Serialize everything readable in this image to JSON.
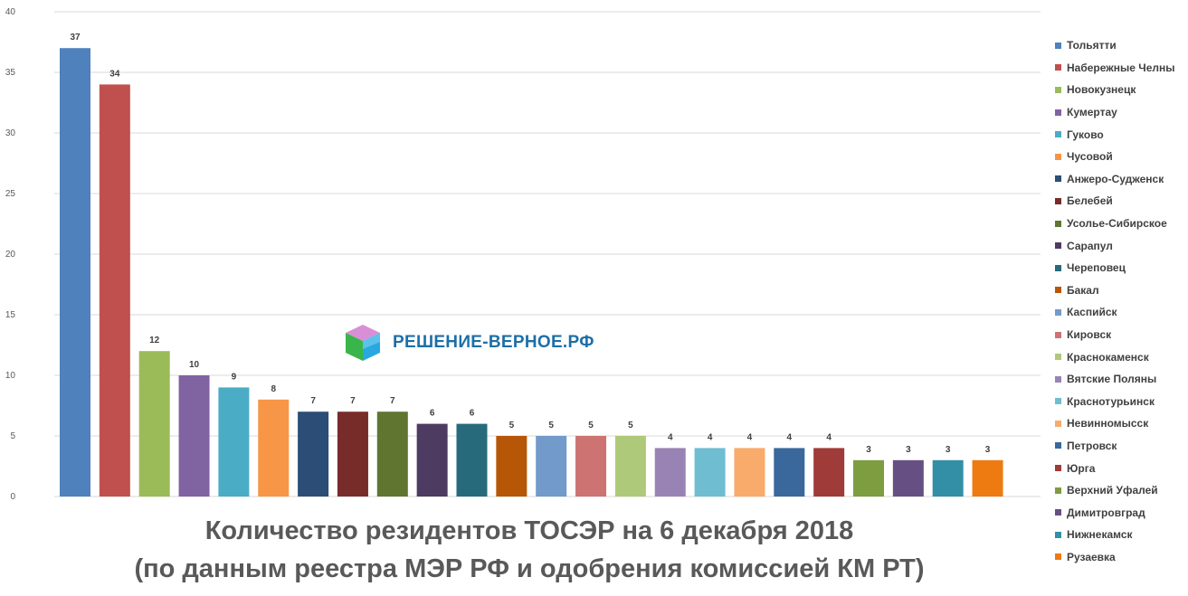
{
  "chart_data": {
    "type": "bar",
    "title": "Количество резидентов ТОСЭР на 6 декабря 2018",
    "subtitle": "(по данным реестра МЭР РФ и одобрения комиссией КМ РТ)",
    "categories": [
      "Тольятти",
      "Набережные Челны",
      "Новокузнецк",
      "Кумертау",
      "Гуково",
      "Чусовой",
      "Анжеро-Судженск",
      "Белебей",
      "Усолье-Сибирское",
      "Сарапул",
      "Череповец",
      "Бакал",
      "Каспийск",
      "Кировск",
      "Краснокаменск",
      "Вятские Поляны",
      "Краснотурьинск",
      "Невинномысск",
      "Петровск",
      "Юрга",
      "Верхний Уфалей",
      "Димитровград",
      "Нижнекамск",
      "Рузаевка"
    ],
    "values": [
      37,
      34,
      12,
      10,
      9,
      8,
      7,
      7,
      7,
      6,
      6,
      5,
      5,
      5,
      5,
      4,
      4,
      4,
      4,
      4,
      3,
      3,
      3,
      3
    ],
    "colors": [
      "#4f81bd",
      "#c0504d",
      "#9bbb59",
      "#8064a2",
      "#4bacc6",
      "#f79646",
      "#2c4d75",
      "#772c2a",
      "#5f7530",
      "#4d3b62",
      "#276a7c",
      "#b65708",
      "#729aca",
      "#cd7371",
      "#afc97a",
      "#9983b5",
      "#6fbdd1",
      "#f9ab6b",
      "#3a679c",
      "#9f3b38",
      "#7e9c40",
      "#664f83",
      "#338fa6",
      "#ee7a12"
    ],
    "ylim": [
      0,
      40
    ],
    "yticks": [
      0,
      5,
      10,
      15,
      20,
      25,
      30,
      35,
      40
    ],
    "grid": true,
    "legend_position": "right"
  },
  "watermark": {
    "text": "РЕШЕНИЕ-ВЕРНОЕ.РФ",
    "icon": "cube-logo-icon"
  }
}
